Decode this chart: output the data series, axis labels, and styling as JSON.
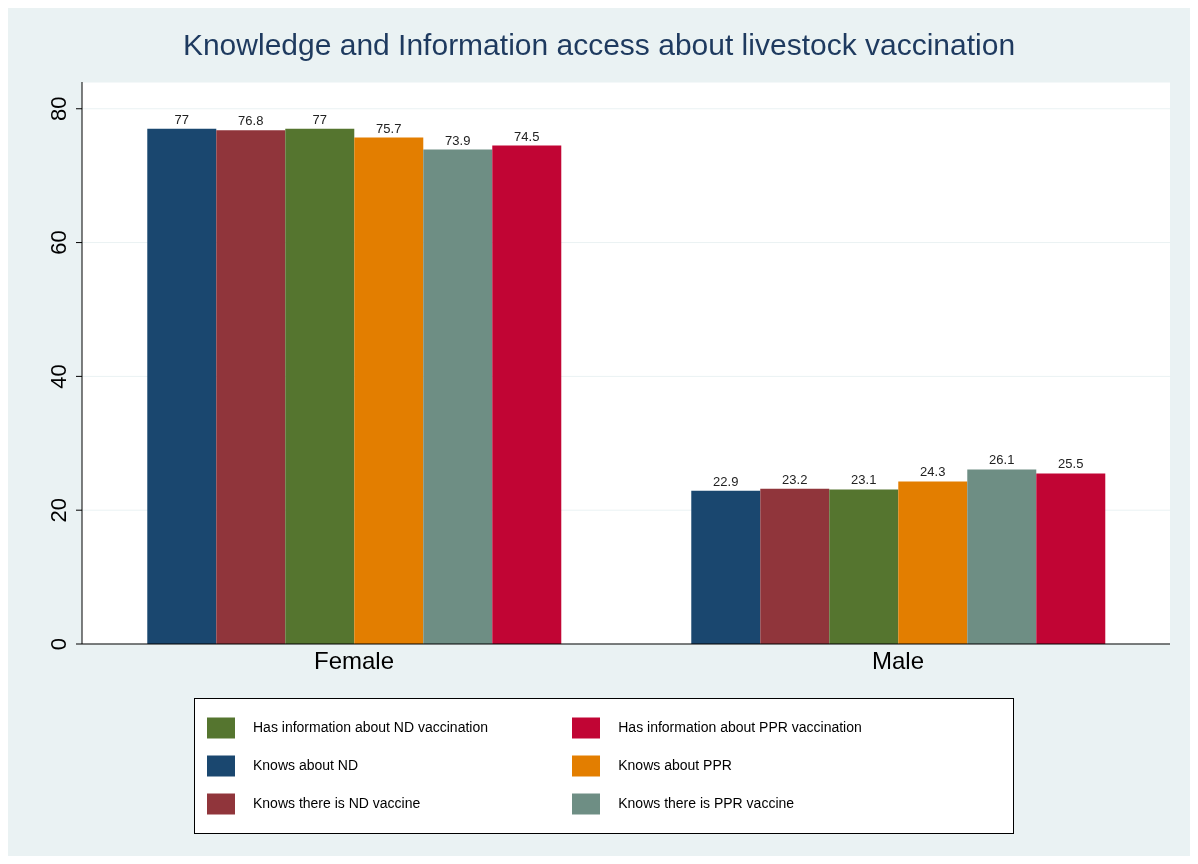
{
  "chart_data": {
    "type": "bar",
    "title": "Knowledge and Information access about livestock vaccination",
    "categories": [
      "Female",
      "Male"
    ],
    "series": [
      {
        "name": "Knows about ND",
        "color": "#1a476f",
        "values": [
          77,
          22.9
        ]
      },
      {
        "name": "Knows there is ND vaccine",
        "color": "#90353b",
        "values": [
          76.8,
          23.2
        ]
      },
      {
        "name": "Has information about ND vaccination",
        "color": "#55752f",
        "values": [
          77,
          23.1
        ]
      },
      {
        "name": "Knows about PPR",
        "color": "#e37e00",
        "values": [
          75.7,
          24.3
        ]
      },
      {
        "name": "Knows there is PPR vaccine",
        "color": "#6e8e84",
        "values": [
          73.9,
          26.1
        ]
      },
      {
        "name": "Has information about PPR vaccination",
        "color": "#c10534",
        "values": [
          74.5,
          25.5
        ]
      }
    ],
    "ylim": [
      0,
      84
    ],
    "yticks": [
      0,
      20,
      40,
      60,
      80
    ],
    "grid": "y",
    "data_labels": true,
    "legend": "bottom"
  }
}
